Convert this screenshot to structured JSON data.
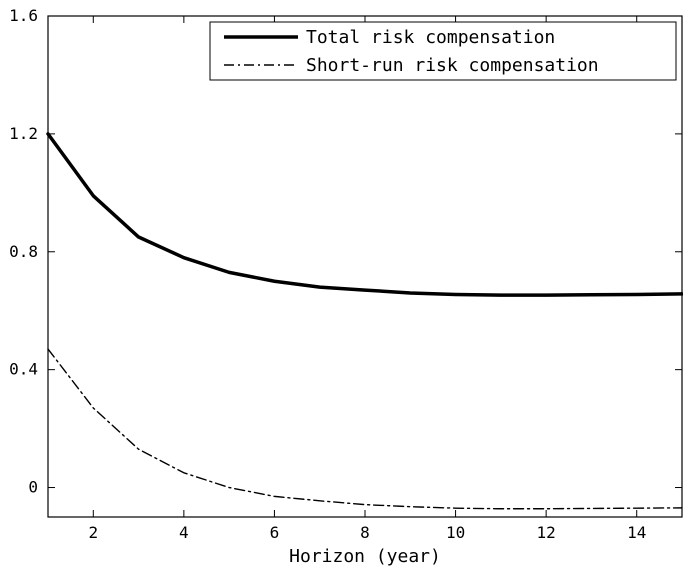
{
  "chart_data": {
    "type": "line",
    "xlabel": "Horizon (year)",
    "ylabel": "",
    "title": "",
    "xlim": [
      1,
      15
    ],
    "ylim": [
      -0.1,
      1.6
    ],
    "x_ticks": [
      2,
      4,
      6,
      8,
      10,
      12,
      14
    ],
    "y_ticks": [
      0,
      0.4,
      0.8,
      1.2,
      1.6
    ],
    "x_tick_labels": [
      "2",
      "4",
      "6",
      "8",
      "10",
      "12",
      "14"
    ],
    "y_tick_labels": [
      "0",
      "0.4",
      "0.8",
      "1.2",
      "1.6"
    ],
    "grid": false,
    "legend_position": "top-right",
    "x": [
      1,
      2,
      3,
      4,
      5,
      6,
      7,
      8,
      9,
      10,
      11,
      12,
      13,
      14,
      15
    ],
    "series": [
      {
        "name": "Total risk compensation",
        "style": "solid",
        "color": "#000000",
        "values": [
          1.2,
          0.99,
          0.85,
          0.78,
          0.73,
          0.7,
          0.68,
          0.67,
          0.66,
          0.655,
          0.653,
          0.653,
          0.654,
          0.655,
          0.657
        ]
      },
      {
        "name": "Short-run risk compensation",
        "style": "dash-dot",
        "color": "#000000",
        "values": [
          0.47,
          0.27,
          0.13,
          0.05,
          0.0,
          -0.03,
          -0.045,
          -0.058,
          -0.065,
          -0.07,
          -0.072,
          -0.072,
          -0.071,
          -0.07,
          -0.069
        ]
      }
    ]
  }
}
